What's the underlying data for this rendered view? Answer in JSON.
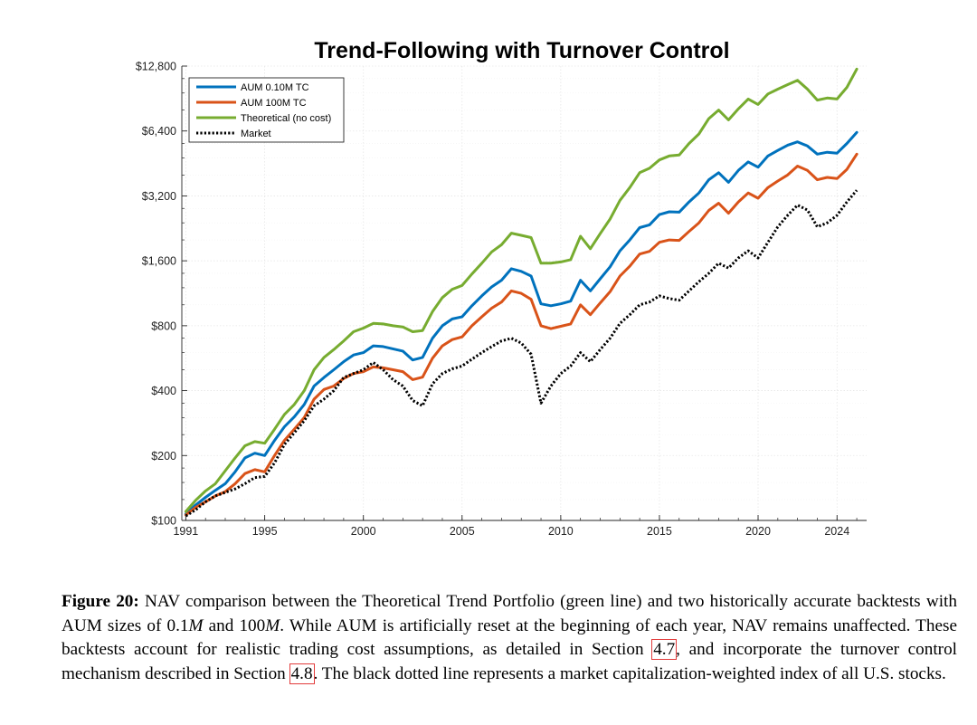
{
  "chart_data": {
    "type": "line",
    "title": "Trend-Following with Turnover Control",
    "xlabel": "",
    "ylabel": "",
    "y_scale": "log2",
    "xlim": [
      1990.8,
      2025.5
    ],
    "ylim": [
      100,
      12800
    ],
    "grid": true,
    "legend_position": "top-left",
    "x_ticks": [
      1991,
      1995,
      2000,
      2005,
      2010,
      2015,
      2020,
      2024
    ],
    "x_tick_labels": [
      "1991",
      "1995",
      "2000",
      "2005",
      "2010",
      "2015",
      "2020",
      "2024"
    ],
    "y_ticks": [
      100,
      200,
      400,
      800,
      1600,
      3200,
      6400,
      12800
    ],
    "y_tick_labels": [
      "$100",
      "$200",
      "$400",
      "$800",
      "$1,600",
      "$3,200",
      "$6,400",
      "$12,800"
    ],
    "x": [
      1991.0,
      1991.5,
      1992.0,
      1992.5,
      1993.0,
      1993.5,
      1994.0,
      1994.5,
      1995.0,
      1995.5,
      1996.0,
      1996.5,
      1997.0,
      1997.5,
      1998.0,
      1998.5,
      1999.0,
      1999.5,
      2000.0,
      2000.5,
      2001.0,
      2001.5,
      2002.0,
      2002.5,
      2003.0,
      2003.5,
      2004.0,
      2004.5,
      2005.0,
      2005.5,
      2006.0,
      2006.5,
      2007.0,
      2007.5,
      2008.0,
      2008.5,
      2009.0,
      2009.5,
      2010.0,
      2010.5,
      2011.0,
      2011.5,
      2012.0,
      2012.5,
      2013.0,
      2013.5,
      2014.0,
      2014.5,
      2015.0,
      2015.5,
      2016.0,
      2016.5,
      2017.0,
      2017.5,
      2018.0,
      2018.5,
      2019.0,
      2019.5,
      2020.0,
      2020.5,
      2021.0,
      2021.5,
      2022.0,
      2022.5,
      2023.0,
      2023.5,
      2024.0,
      2024.5,
      2025.0
    ],
    "series": [
      {
        "name": "AUM 0.10M TC",
        "color": "#0072BD",
        "style": "solid",
        "values": [
          107,
          118,
          128,
          138,
          148,
          168,
          195,
          205,
          200,
          235,
          272,
          302,
          345,
          420,
          460,
          500,
          545,
          585,
          600,
          645,
          640,
          625,
          610,
          555,
          570,
          700,
          800,
          860,
          880,
          990,
          1100,
          1210,
          1300,
          1470,
          1430,
          1360,
          1010,
          990,
          1010,
          1040,
          1300,
          1160,
          1320,
          1500,
          1780,
          2000,
          2280,
          2350,
          2620,
          2700,
          2690,
          3000,
          3300,
          3800,
          4100,
          3700,
          4200,
          4600,
          4350,
          4900,
          5200,
          5500,
          5700,
          5450,
          5000,
          5100,
          5050,
          5600,
          6300
        ]
      },
      {
        "name": "AUM 100M TC",
        "color": "#D95319",
        "style": "solid",
        "values": [
          106,
          115,
          122,
          130,
          136,
          148,
          165,
          172,
          168,
          200,
          235,
          265,
          300,
          365,
          405,
          420,
          455,
          480,
          490,
          515,
          510,
          500,
          490,
          450,
          462,
          565,
          645,
          690,
          710,
          800,
          880,
          965,
          1030,
          1160,
          1130,
          1060,
          800,
          775,
          795,
          815,
          1000,
          900,
          1020,
          1150,
          1360,
          1510,
          1720,
          1770,
          1950,
          2000,
          1990,
          2190,
          2400,
          2740,
          2960,
          2660,
          3000,
          3300,
          3120,
          3500,
          3750,
          4000,
          4400,
          4200,
          3800,
          3900,
          3850,
          4250,
          5000
        ]
      },
      {
        "name": "Theoretical (no cost)",
        "color": "#77AC30",
        "style": "solid",
        "values": [
          110,
          124,
          137,
          148,
          170,
          195,
          222,
          232,
          228,
          265,
          310,
          345,
          400,
          500,
          570,
          620,
          680,
          750,
          780,
          820,
          815,
          800,
          790,
          750,
          760,
          930,
          1080,
          1180,
          1230,
          1390,
          1560,
          1760,
          1900,
          2150,
          2100,
          2050,
          1560,
          1560,
          1580,
          1620,
          2080,
          1820,
          2140,
          2500,
          3050,
          3500,
          4100,
          4300,
          4700,
          4900,
          4950,
          5600,
          6200,
          7300,
          8000,
          7200,
          8100,
          9000,
          8500,
          9500,
          10000,
          10500,
          11000,
          10000,
          8900,
          9100,
          9000,
          10200,
          12400
        ]
      },
      {
        "name": "Market",
        "color": "#000000",
        "style": "dotted",
        "values": [
          105,
          112,
          122,
          130,
          135,
          140,
          148,
          158,
          160,
          185,
          225,
          255,
          290,
          340,
          365,
          400,
          460,
          480,
          500,
          540,
          500,
          450,
          420,
          360,
          340,
          430,
          480,
          505,
          520,
          560,
          600,
          640,
          680,
          700,
          665,
          590,
          350,
          420,
          480,
          520,
          600,
          545,
          620,
          700,
          820,
          900,
          1000,
          1030,
          1100,
          1070,
          1050,
          1160,
          1280,
          1400,
          1560,
          1480,
          1650,
          1780,
          1650,
          1950,
          2300,
          2600,
          2900,
          2750,
          2300,
          2400,
          2600,
          3000,
          3400
        ]
      }
    ]
  },
  "legend": {
    "items": [
      "AUM 0.10M TC",
      "AUM 100M TC",
      "Theoretical (no cost)",
      "Market"
    ]
  },
  "caption": {
    "label": "Figure 20:",
    "part1": "NAV comparison between the Theoretical Trend Portfolio (green line) and two historically accurate backtests with AUM sizes of 0.1",
    "math1": "M",
    "part2": " and 100",
    "math2": "M",
    "part3": ". While AUM is artificially reset at the beginning of each year, NAV remains unaffected. These backtests account for realistic trading cost assumptions, as detailed in Section ",
    "ref1": "4.7",
    "part4": ", and incorporate the turnover control mechanism described in Section ",
    "ref2": "4.8",
    "part5": ". The black dotted line represents a market capitalization-weighted index of all U.S. stocks."
  }
}
